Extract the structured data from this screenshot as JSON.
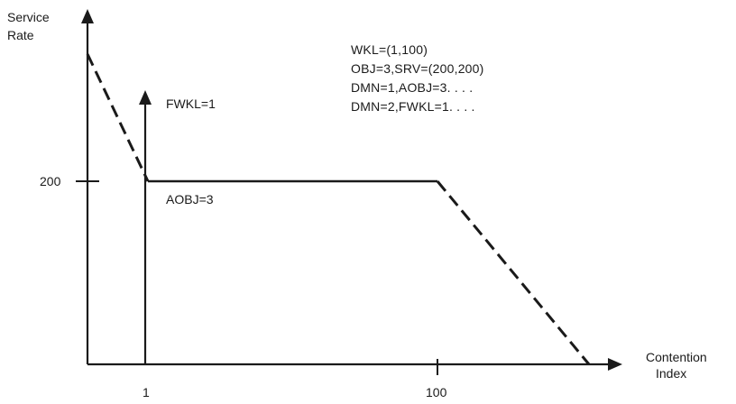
{
  "axes": {
    "y_label_line1": "Service",
    "y_label_line2": "Rate",
    "x_label_line1": "Contention",
    "x_label_line2": "Index"
  },
  "ticks": {
    "y_200": "200",
    "x_1": "1",
    "x_100": "100"
  },
  "labels": {
    "fwkl": "FWKL=1",
    "aobj": "AOBJ=3"
  },
  "notes": [
    "WKL=(1,100)",
    "OBJ=3,SRV=(200,200)",
    "DMN=1,AOBJ=3. . . .",
    "DMN=2,FWKL=1. . . ."
  ],
  "colors": {
    "ink": "#1a1a1a",
    "background": "#ffffff"
  }
}
